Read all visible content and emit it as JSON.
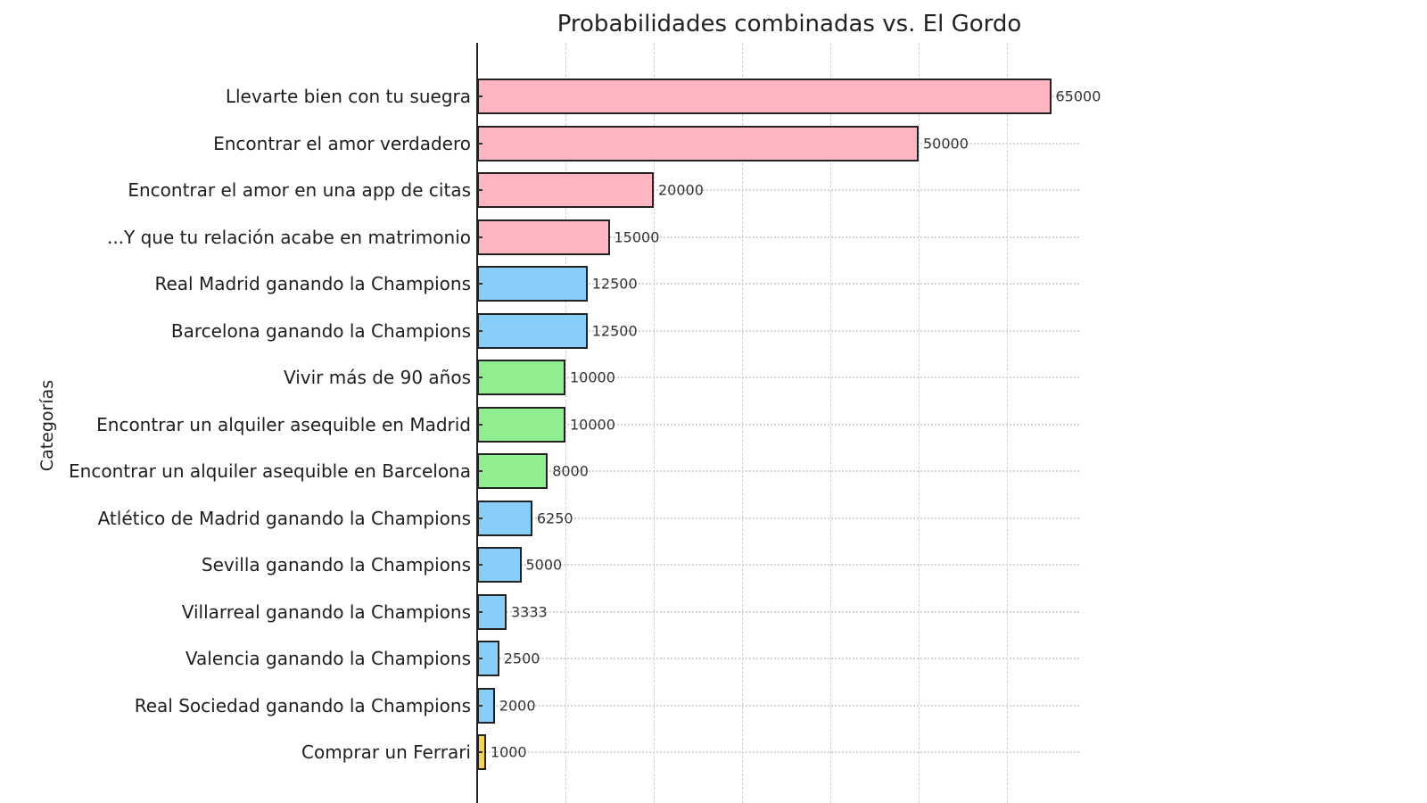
{
  "chart_data": {
    "type": "bar",
    "orientation": "horizontal",
    "title": "Probabilidades combinadas vs. El Gordo",
    "xlabel": "",
    "ylabel": "Categorías",
    "xlim": [
      0,
      68000
    ],
    "grid": true,
    "categories": [
      "Llevarte bien con tu suegra",
      "Encontrar el amor verdadero",
      "Encontrar el amor en una app de citas",
      "...Y que tu relación acabe en matrimonio",
      "Real Madrid ganando la Champions",
      "Barcelona ganando la Champions",
      "Vivir más de 90 años",
      "Encontrar un alquiler asequible en Madrid",
      "Encontrar un alquiler asequible en Barcelona",
      "Atlético de Madrid ganando la Champions",
      "Sevilla ganando la Champions",
      "Villarreal ganando la Champions",
      "Valencia ganando la Champions",
      "Real Sociedad ganando la Champions",
      "Comprar un Ferrari"
    ],
    "values": [
      65000,
      50000,
      20000,
      15000,
      12500,
      12500,
      10000,
      10000,
      8000,
      6250,
      5000,
      3333,
      2500,
      2000,
      1000
    ],
    "value_labels": [
      "65000",
      "50000",
      "20000",
      "15000",
      "12500",
      "12500",
      "10000",
      "10000",
      "8000",
      "6250",
      "5000",
      "3333",
      "2500",
      "2000",
      "1000"
    ],
    "colors": [
      "#FFB6C1",
      "#FFB6C1",
      "#FFB6C1",
      "#FFB6C1",
      "#87CEFA",
      "#87CEFA",
      "#90EE90",
      "#90EE90",
      "#90EE90",
      "#87CEFA",
      "#87CEFA",
      "#87CEFA",
      "#87CEFA",
      "#87CEFA",
      "#F2D45C"
    ],
    "color_groups": {
      "love": "#FFB6C1",
      "football": "#87CEFA",
      "life": "#90EE90",
      "luxury": "#F2D45C"
    }
  }
}
